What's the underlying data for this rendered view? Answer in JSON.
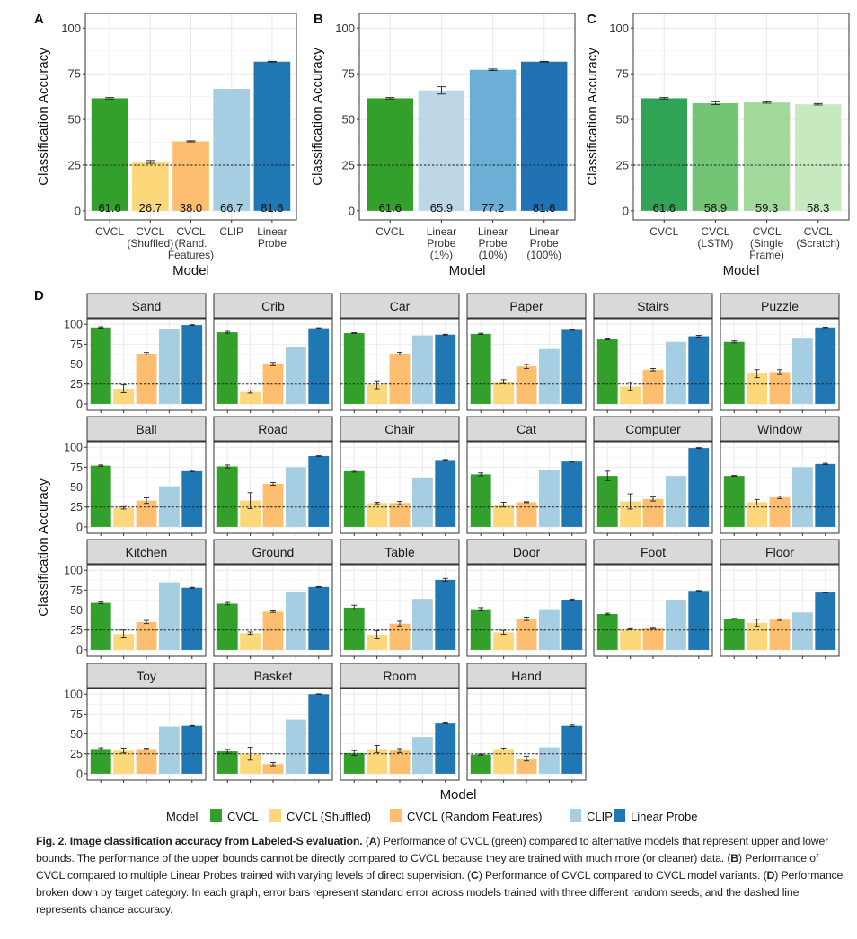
{
  "legend": {
    "title": "Model",
    "items": [
      {
        "label": "CVCL",
        "color": "#33a02c"
      },
      {
        "label": "CVCL (Shuffled)",
        "color": "#fdd87a"
      },
      {
        "label": "CVCL (Random Features)",
        "color": "#fdbf6f"
      },
      {
        "label": "CLIP",
        "color": "#a6cee3"
      },
      {
        "label": "Linear Probe",
        "color": "#1f78b4"
      }
    ]
  },
  "caption": {
    "segments": [
      {
        "text": "Fig. 2. Image classification accuracy from Labeled-S evaluation.",
        "bold": true
      },
      {
        "text": " (",
        "bold": false
      },
      {
        "text": "A",
        "bold": true
      },
      {
        "text": ") Performance of CVCL (green) compared to alternative models that represent upper and lower bounds. The performance of the upper bounds cannot be directly compared to CVCL because they are trained with much more (or cleaner) data. (",
        "bold": false
      },
      {
        "text": "B",
        "bold": true
      },
      {
        "text": ") Performance of CVCL compared to multiple Linear Probes trained with varying levels of direct supervision. (",
        "bold": false
      },
      {
        "text": "C",
        "bold": true
      },
      {
        "text": ") Performance of CVCL compared to CVCL model variants. (",
        "bold": false
      },
      {
        "text": "D",
        "bold": true
      },
      {
        "text": ") Performance broken down by target category. In each graph, error bars represent standard error across models trained with three different random seeds, and the dashed line represents chance accuracy.",
        "bold": false
      }
    ]
  },
  "chart_data": [
    {
      "panel": "A",
      "type": "bar",
      "xlabel": "Model",
      "ylabel": "Classification Accuracy",
      "ylim": [
        0,
        100
      ],
      "yticks": [
        0,
        25,
        50,
        75,
        100
      ],
      "chance": 25,
      "categories": [
        [
          "CVCL"
        ],
        [
          "CVCL",
          "(Shuffled)"
        ],
        [
          "CVCL",
          "(Rand.",
          "Features)"
        ],
        [
          "CLIP"
        ],
        [
          "Linear",
          "Probe"
        ]
      ],
      "values": [
        61.6,
        26.7,
        38.0,
        66.7,
        81.6
      ],
      "data_labels": [
        "61.6",
        "26.7",
        "38.0",
        "66.7",
        "81.6"
      ],
      "errors": [
        0.4,
        0.8,
        0.3,
        0,
        0.2
      ],
      "colors": [
        "#33a02c",
        "#fdd87a",
        "#fdbf6f",
        "#a6cee3",
        "#1f78b4"
      ]
    },
    {
      "panel": "B",
      "type": "bar",
      "xlabel": "Model",
      "ylabel": "Classification Accuracy",
      "ylim": [
        0,
        100
      ],
      "yticks": [
        0,
        25,
        50,
        75,
        100
      ],
      "chance": 25,
      "categories": [
        [
          "CVCL"
        ],
        [
          "Linear",
          "Probe",
          "(1%)"
        ],
        [
          "Linear",
          "Probe",
          "(10%)"
        ],
        [
          "Linear",
          "Probe",
          "(100%)"
        ]
      ],
      "values": [
        61.6,
        65.9,
        77.2,
        81.6
      ],
      "data_labels": [
        "61.6",
        "65.9",
        "77.2",
        "81.6"
      ],
      "errors": [
        0.4,
        2.0,
        0.4,
        0.2
      ],
      "colors": [
        "#33a02c",
        "#bdd7e7",
        "#6baed6",
        "#2171b5"
      ]
    },
    {
      "panel": "C",
      "type": "bar",
      "xlabel": "Model",
      "ylabel": "Classification Accuracy",
      "ylim": [
        0,
        100
      ],
      "yticks": [
        0,
        25,
        50,
        75,
        100
      ],
      "chance": 25,
      "categories": [
        [
          "CVCL"
        ],
        [
          "CVCL",
          "(LSTM)"
        ],
        [
          "CVCL",
          "(Single",
          "Frame)"
        ],
        [
          "CVCL",
          "(Scratch)"
        ]
      ],
      "values": [
        61.6,
        58.9,
        59.3,
        58.3
      ],
      "data_labels": [
        "61.6",
        "58.9",
        "59.3",
        "58.3"
      ],
      "errors": [
        0.4,
        0.8,
        0.4,
        0.4
      ],
      "colors": [
        "#31a354",
        "#74c476",
        "#a1d99b",
        "#c7e9c0"
      ]
    },
    {
      "panel": "D",
      "type": "bar",
      "xlabel": "Model",
      "ylabel": "Classification Accuracy",
      "ylim": [
        0,
        100
      ],
      "yticks": [
        0,
        25,
        50,
        75,
        100
      ],
      "chance": 25,
      "series_names": [
        "CVCL",
        "CVCL (Shuffled)",
        "CVCL (Random Features)",
        "CLIP",
        "Linear Probe"
      ],
      "colors": [
        "#33a02c",
        "#fdd87a",
        "#fdbf6f",
        "#a6cee3",
        "#1f78b4"
      ],
      "facets": [
        {
          "name": "Sand",
          "values": [
            96,
            19,
            63,
            94,
            99
          ],
          "errors": [
            0.8,
            5,
            1.5,
            0,
            0.4
          ]
        },
        {
          "name": "Crib",
          "values": [
            90,
            15,
            50,
            71,
            95
          ],
          "errors": [
            1.2,
            1.5,
            2,
            0,
            0.6
          ]
        },
        {
          "name": "Car",
          "values": [
            89,
            24,
            63,
            86,
            87
          ],
          "errors": [
            0.5,
            5,
            1.8,
            0,
            0.5
          ]
        },
        {
          "name": "Paper",
          "values": [
            88,
            28,
            47,
            69,
            93
          ],
          "errors": [
            0.8,
            2.5,
            2.5,
            0,
            0.5
          ]
        },
        {
          "name": "Stairs",
          "values": [
            81,
            22,
            43,
            78,
            85
          ],
          "errors": [
            0.6,
            5,
            1.5,
            0,
            1.2
          ]
        },
        {
          "name": "Puzzle",
          "values": [
            78,
            38,
            40,
            82,
            96
          ],
          "errors": [
            1.2,
            5,
            3,
            0,
            0.3
          ]
        },
        {
          "name": "Ball",
          "values": [
            77,
            24,
            33,
            51,
            70
          ],
          "errors": [
            0.8,
            1.5,
            3.5,
            0,
            1
          ]
        },
        {
          "name": "Road",
          "values": [
            76,
            33,
            54,
            75,
            89
          ],
          "errors": [
            1.8,
            10,
            1.8,
            0,
            0.4
          ]
        },
        {
          "name": "Chair",
          "values": [
            70,
            30,
            30,
            62,
            84
          ],
          "errors": [
            1.2,
            1,
            2,
            0,
            0.6
          ]
        },
        {
          "name": "Cat",
          "values": [
            66,
            28,
            31,
            71,
            82
          ],
          "errors": [
            1.8,
            3,
            0.6,
            0,
            0.6
          ]
        },
        {
          "name": "Computer",
          "values": [
            64,
            32,
            35,
            64,
            99
          ],
          "errors": [
            6,
            9.5,
            2.5,
            0,
            0.5
          ]
        },
        {
          "name": "Window",
          "values": [
            64,
            31,
            37,
            75,
            79
          ],
          "errors": [
            0.6,
            3.5,
            1.5,
            0,
            0.8
          ]
        },
        {
          "name": "Kitchen",
          "values": [
            59,
            20,
            35,
            85,
            78
          ],
          "errors": [
            1,
            5,
            2,
            0,
            0.6
          ]
        },
        {
          "name": "Ground",
          "values": [
            58,
            21,
            48,
            73,
            79
          ],
          "errors": [
            1.5,
            1.5,
            1,
            0,
            0.5
          ]
        },
        {
          "name": "Table",
          "values": [
            53,
            19,
            33,
            64,
            88
          ],
          "errors": [
            3,
            5,
            3,
            0,
            1.8
          ]
        },
        {
          "name": "Door",
          "values": [
            51,
            22,
            39,
            51,
            63
          ],
          "errors": [
            2,
            2.5,
            2,
            0,
            0.8
          ]
        },
        {
          "name": "Foot",
          "values": [
            45,
            26,
            27,
            63,
            74
          ],
          "errors": [
            1,
            0.6,
            1,
            0,
            0.5
          ]
        },
        {
          "name": "Floor",
          "values": [
            39,
            34,
            38,
            47,
            72
          ],
          "errors": [
            0.5,
            4.5,
            1,
            0,
            0.6
          ]
        },
        {
          "name": "Toy",
          "values": [
            31,
            29,
            31,
            59,
            60
          ],
          "errors": [
            1.5,
            3,
            0.8,
            0,
            0.5
          ]
        },
        {
          "name": "Basket",
          "values": [
            28,
            25,
            12,
            68,
            100
          ],
          "errors": [
            2.5,
            8,
            2,
            0,
            0.3
          ]
        },
        {
          "name": "Room",
          "values": [
            26,
            31,
            29,
            46,
            64
          ],
          "errors": [
            3,
            4.5,
            2.5,
            0,
            0.6
          ]
        },
        {
          "name": "Hand",
          "values": [
            24,
            31,
            19,
            33,
            60
          ],
          "errors": [
            0.6,
            1.2,
            3,
            0,
            1
          ]
        }
      ]
    }
  ]
}
